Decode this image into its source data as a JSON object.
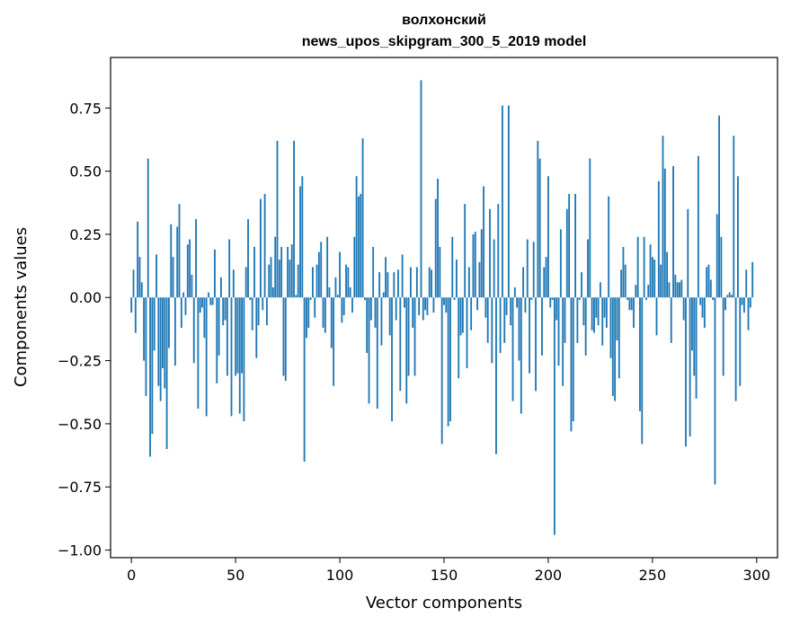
{
  "chart_data": {
    "type": "bar",
    "title": "волхонский",
    "subtitle": "news_upos_skipgram_300_5_2019 model",
    "xlabel": "Vector components",
    "ylabel": "Components values",
    "xlim": [
      -10,
      310
    ],
    "ylim": [
      -1.03,
      0.95
    ],
    "xticks": [
      0,
      50,
      100,
      150,
      200,
      250,
      300
    ],
    "yticks": [
      -1.0,
      -0.75,
      -0.5,
      -0.25,
      0.0,
      0.25,
      0.5,
      0.75
    ],
    "ytick_labels": [
      "−1.00",
      "−0.75",
      "−0.50",
      "−0.25",
      "0.00",
      "0.25",
      "0.50",
      "0.75"
    ],
    "bar_color": "#1f77b4",
    "grid": false,
    "values": [
      -0.06,
      0.11,
      -0.14,
      0.3,
      0.16,
      0.06,
      -0.25,
      -0.39,
      0.55,
      -0.63,
      -0.54,
      -0.21,
      0.17,
      -0.35,
      -0.41,
      -0.28,
      -0.36,
      -0.6,
      -0.2,
      0.29,
      0.16,
      -0.27,
      0.28,
      0.37,
      -0.12,
      0.02,
      -0.07,
      0.21,
      0.23,
      0.09,
      -0.26,
      0.31,
      -0.44,
      -0.06,
      -0.04,
      -0.16,
      -0.47,
      0.02,
      -0.03,
      -0.03,
      0.19,
      -0.34,
      -0.23,
      0.08,
      -0.11,
      -0.09,
      -0.31,
      0.23,
      -0.47,
      0.11,
      -0.31,
      -0.3,
      -0.46,
      -0.3,
      -0.49,
      0.12,
      0.31,
      -0.01,
      -0.13,
      0.2,
      -0.24,
      -0.11,
      0.39,
      -0.05,
      0.41,
      -0.11,
      0.13,
      0.16,
      0.04,
      0.24,
      0.62,
      0.15,
      0.2,
      -0.31,
      -0.33,
      0.2,
      0.15,
      0.21,
      0.62,
      0.01,
      0.13,
      0.44,
      0.48,
      -0.65,
      -0.16,
      -0.12,
      -0.01,
      0.12,
      -0.08,
      0.13,
      0.18,
      0.22,
      -0.12,
      -0.14,
      0.24,
      0.04,
      -0.2,
      -0.35,
      0.08,
      0.01,
      0.18,
      -0.1,
      -0.07,
      0.13,
      0.12,
      0.04,
      -0.06,
      0.24,
      0.48,
      0.4,
      0.41,
      0.63,
      -0.01,
      -0.22,
      -0.42,
      -0.09,
      0.2,
      -0.12,
      -0.44,
      0.1,
      -0.19,
      0.02,
      0.16,
      0.1,
      -0.15,
      -0.49,
      0.1,
      -0.09,
      0.11,
      -0.37,
      0.17,
      -0.04,
      -0.42,
      -0.31,
      0.12,
      -0.12,
      -0.31,
      0.12,
      -0.07,
      0.86,
      -0.09,
      -0.05,
      -0.07,
      0.12,
      0.11,
      -0.06,
      0.39,
      0.47,
      0.2,
      -0.58,
      -0.03,
      -0.06,
      -0.51,
      -0.49,
      0.24,
      -0.01,
      0.15,
      -0.32,
      -0.15,
      -0.14,
      0.37,
      -0.28,
      0.12,
      -0.13,
      0.25,
      0.26,
      -0.05,
      0.14,
      0.27,
      0.44,
      -0.08,
      -0.18,
      0.35,
      -0.26,
      0.23,
      -0.62,
      0.37,
      -0.22,
      0.76,
      -0.18,
      -0.07,
      0.76,
      -0.11,
      -0.41,
      0.04,
      -0.04,
      -0.25,
      -0.46,
      0.12,
      -0.06,
      0.23,
      -0.3,
      -0.01,
      0.22,
      -0.37,
      0.62,
      0.55,
      -0.23,
      0.12,
      0.16,
      0.48,
      -0.04,
      -0.01,
      -0.94,
      -0.09,
      -0.27,
      0.27,
      -0.35,
      -0.18,
      0.35,
      0.41,
      -0.53,
      -0.49,
      0.41,
      -0.18,
      -0.01,
      0.1,
      -0.11,
      -0.23,
      0.23,
      0.55,
      -0.13,
      -0.14,
      -0.08,
      -0.11,
      0.06,
      -0.19,
      -0.08,
      -0.12,
      0.4,
      -0.24,
      -0.39,
      -0.41,
      -0.17,
      -0.32,
      0.11,
      0.2,
      0.13,
      -0.01,
      -0.05,
      -0.05,
      -0.12,
      0.05,
      0.24,
      -0.45,
      -0.58,
      0.24,
      -0.01,
      0.05,
      0.21,
      0.16,
      0.15,
      -0.15,
      0.46,
      0.13,
      0.64,
      0.51,
      0.18,
      0.06,
      -0.18,
      0.52,
      0.09,
      0.06,
      0.06,
      0.07,
      -0.09,
      -0.59,
      0.35,
      -0.55,
      -0.21,
      -0.31,
      -0.4,
      0.56,
      -0.03,
      -0.08,
      -0.12,
      0.12,
      0.13,
      0.07,
      -0.01,
      -0.74,
      0.33,
      0.72,
      0.24,
      -0.31,
      -0.05,
      0.01,
      0.02,
      0.01,
      0.64,
      -0.41,
      0.48,
      -0.35,
      -0.03,
      -0.06,
      0.11,
      -0.13,
      -0.04,
      0.14
    ]
  }
}
